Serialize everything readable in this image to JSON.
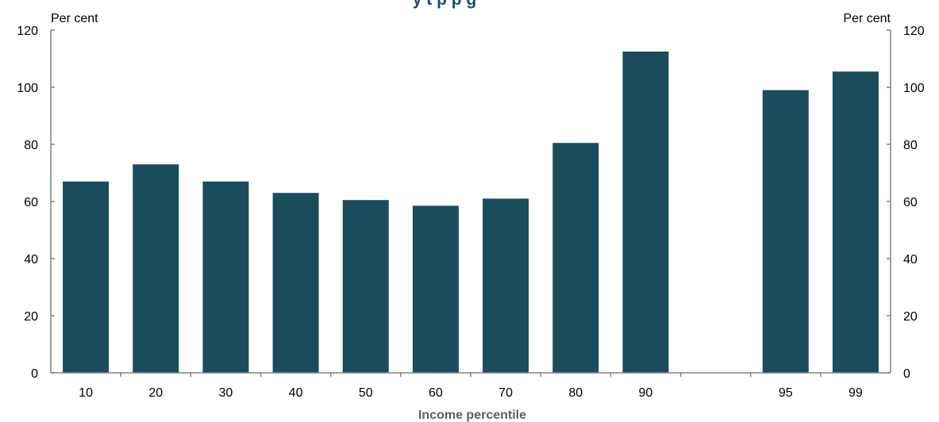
{
  "chart_data": {
    "type": "bar",
    "title": "y   t   p                                                                           p  g",
    "categories": [
      "10",
      "20",
      "30",
      "40",
      "50",
      "60",
      "70",
      "80",
      "90",
      "",
      "95",
      "99"
    ],
    "values": [
      67,
      73,
      67,
      63,
      60.5,
      58.5,
      61,
      80.5,
      112.5,
      null,
      99,
      105.5
    ],
    "xlabel": "Income percentile",
    "ylabel_left": "Per cent",
    "ylabel_right": "Per cent",
    "ylim": [
      0,
      120
    ],
    "yticks": [
      0,
      20,
      40,
      60,
      80,
      100,
      120
    ],
    "grid": false,
    "legend": "none",
    "bar_color": "#1a4c5c",
    "axis_color": "#808080"
  }
}
